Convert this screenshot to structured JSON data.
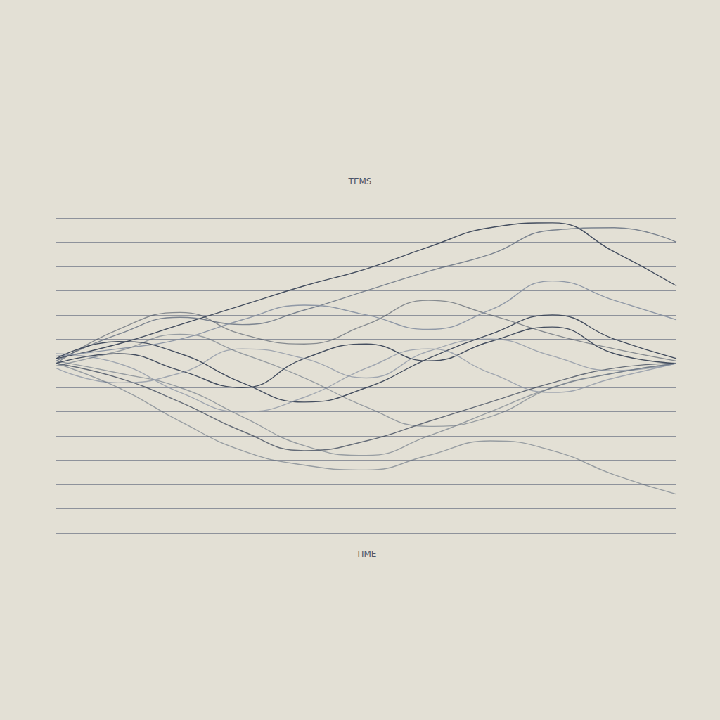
{
  "chart_data": {
    "type": "line",
    "title": "TEMS",
    "x_label": "TIME",
    "x": [
      0,
      1,
      2,
      3,
      4,
      5,
      6,
      7,
      8,
      9,
      10
    ],
    "xlim": [
      0,
      10
    ],
    "ylim": [
      -7,
      6
    ],
    "yticks": [
      -7,
      -6,
      -5,
      -4,
      -3,
      -2,
      -1,
      0,
      1,
      2,
      3,
      4,
      5,
      6
    ],
    "grid": true,
    "tick_labels": false,
    "line_style": "solid",
    "series": [
      {
        "color": "#3b4658",
        "values": [
          0.2,
          0.8,
          1.6,
          2.4,
          3.2,
          3.9,
          4.8,
          5.6,
          5.8,
          4.6,
          3.2
        ]
      },
      {
        "color": "#5a6678",
        "values": [
          0.1,
          1.2,
          1.9,
          1.6,
          2.2,
          3.0,
          3.8,
          4.5,
          5.5,
          5.6,
          5.0
        ]
      },
      {
        "color": "#3b4658",
        "values": [
          0.0,
          1.4,
          2.1,
          1.2,
          0.8,
          1.6,
          2.6,
          2.0,
          1.2,
          0.6,
          0.1
        ]
      },
      {
        "color": "#8a93a3",
        "values": [
          0.3,
          0.6,
          1.0,
          1.8,
          2.4,
          2.0,
          1.4,
          2.2,
          3.4,
          2.6,
          1.8
        ]
      },
      {
        "color": "#3b4658",
        "values": [
          0.0,
          -0.6,
          -1.6,
          -2.8,
          -3.6,
          -3.2,
          -2.4,
          -1.6,
          -0.8,
          -0.2,
          0.0
        ]
      },
      {
        "color": "#5a6678",
        "values": [
          0.1,
          -0.4,
          -1.0,
          -2.2,
          -3.4,
          -3.8,
          -3.0,
          -2.0,
          -1.0,
          -0.4,
          0.0
        ]
      },
      {
        "color": "#3b4658",
        "values": [
          0.0,
          0.4,
          -0.3,
          -1.0,
          0.2,
          0.8,
          0.1,
          0.9,
          1.5,
          0.4,
          0.0
        ]
      },
      {
        "color": "#8a93a3",
        "values": [
          -0.2,
          -0.8,
          -0.4,
          0.6,
          0.2,
          -0.6,
          0.5,
          1.0,
          0.3,
          -0.3,
          0.0
        ]
      },
      {
        "color": "#5a6678",
        "values": [
          0.0,
          -1.0,
          -2.4,
          -3.6,
          -4.2,
          -4.4,
          -3.8,
          -3.2,
          -3.6,
          -4.6,
          -5.4
        ]
      },
      {
        "color": "#3b4658",
        "values": [
          0.2,
          0.9,
          0.4,
          -0.8,
          -1.6,
          -1.0,
          0.2,
          1.2,
          2.0,
          1.0,
          0.2
        ]
      },
      {
        "color": "#8a93a3",
        "values": [
          0.4,
          0.0,
          -1.2,
          -2.0,
          -1.4,
          -0.2,
          0.6,
          -0.4,
          -1.2,
          -0.6,
          0.0
        ]
      },
      {
        "color": "#5a6678",
        "values": [
          -0.1,
          0.5,
          1.2,
          0.4,
          -0.6,
          -1.8,
          -2.6,
          -2.2,
          -1.0,
          -0.4,
          0.0
        ]
      }
    ]
  }
}
